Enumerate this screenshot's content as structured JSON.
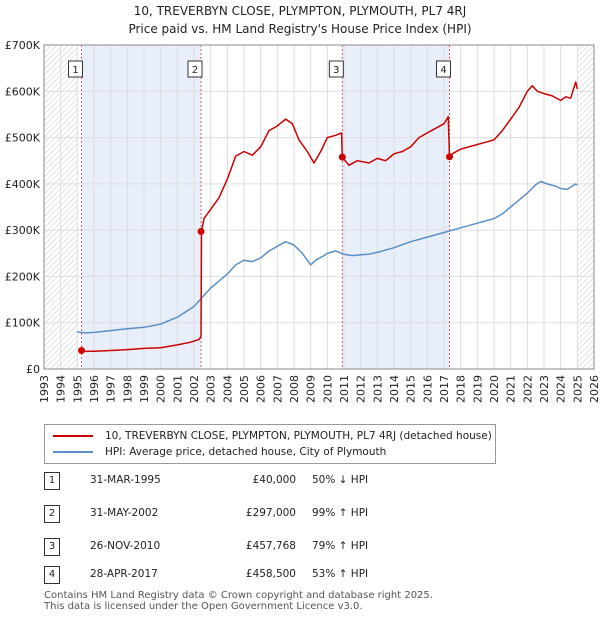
{
  "title": {
    "line1": "10, TREVERBYN CLOSE, PLYMPTON, PLYMOUTH, PL7 4RJ",
    "line2": "Price paid vs. HM Land Registry's House Price Index (HPI)"
  },
  "colors": {
    "price_line": "#cc0000",
    "hpi_line": "#5b8fc7",
    "shade": "#e8eefa",
    "grid": "#dddddd",
    "vline": "#d06060"
  },
  "chart_data": {
    "type": "line",
    "x_range": [
      1993,
      2026
    ],
    "ylim": [
      0,
      700000
    ],
    "y_ticks": [
      {
        "value": 0,
        "label": "£0"
      },
      {
        "value": 100000,
        "label": "£100K"
      },
      {
        "value": 200000,
        "label": "£200K"
      },
      {
        "value": 300000,
        "label": "£300K"
      },
      {
        "value": 400000,
        "label": "£400K"
      },
      {
        "value": 500000,
        "label": "£500K"
      },
      {
        "value": 600000,
        "label": "£600K"
      },
      {
        "value": 700000,
        "label": "£700K"
      }
    ],
    "x_ticks": [
      "1993",
      "1994",
      "1995",
      "1996",
      "1997",
      "1998",
      "1999",
      "2000",
      "2001",
      "2002",
      "2003",
      "2004",
      "2005",
      "2006",
      "2007",
      "2008",
      "2009",
      "2010",
      "2011",
      "2012",
      "2013",
      "2014",
      "2015",
      "2016",
      "2017",
      "2018",
      "2019",
      "2020",
      "2021",
      "2022",
      "2023",
      "2024",
      "2025",
      "2026"
    ],
    "shaded_periods": [
      [
        1995.25,
        2002.42
      ],
      [
        2010.9,
        2017.33
      ]
    ],
    "hatched_regions": [
      [
        1993.0,
        1995.0
      ],
      [
        2025.0,
        2026.0
      ]
    ],
    "sales": [
      {
        "label": "1",
        "x": 1995.25,
        "y": 40000
      },
      {
        "label": "2",
        "x": 2002.42,
        "y": 297000
      },
      {
        "label": "3",
        "x": 2010.9,
        "y": 457768
      },
      {
        "label": "4",
        "x": 2017.33,
        "y": 458500
      }
    ],
    "series": [
      {
        "name": "10, TREVERBYN CLOSE, PLYMPTON, PLYMOUTH, PL7 4RJ (detached house)",
        "x": [
          1995.25,
          1995.5,
          1996.0,
          1997.0,
          1998.0,
          1999.0,
          2000.0,
          2001.0,
          2001.8,
          2002.3,
          2002.42,
          2002.45,
          2002.6,
          2003.0,
          2003.5,
          2004.0,
          2004.5,
          2005.0,
          2005.5,
          2006.0,
          2006.5,
          2007.0,
          2007.5,
          2007.9,
          2008.3,
          2008.8,
          2009.2,
          2009.6,
          2010.0,
          2010.5,
          2010.85,
          2010.9,
          2011.3,
          2011.8,
          2012.5,
          2013.0,
          2013.5,
          2014.0,
          2014.5,
          2015.0,
          2015.5,
          2016.0,
          2016.5,
          2017.0,
          2017.25,
          2017.33,
          2017.5,
          2018.0,
          2018.5,
          2019.0,
          2019.5,
          2020.0,
          2020.5,
          2021.0,
          2021.5,
          2022.0,
          2022.3,
          2022.6,
          2023.0,
          2023.5,
          2024.0,
          2024.3,
          2024.6,
          2024.9,
          2025.0
        ],
        "y": [
          40000,
          38000,
          38500,
          40000,
          42000,
          44500,
          46000,
          52000,
          58000,
          64000,
          70000,
          297000,
          325000,
          345000,
          370000,
          410000,
          460000,
          470000,
          462000,
          480000,
          515000,
          525000,
          540000,
          530000,
          495000,
          470000,
          445000,
          470000,
          500000,
          505000,
          510000,
          457768,
          440000,
          450000,
          445000,
          455000,
          450000,
          465000,
          470000,
          480000,
          500000,
          510000,
          520000,
          530000,
          545000,
          458500,
          465000,
          475000,
          480000,
          485000,
          490000,
          495000,
          515000,
          540000,
          565000,
          600000,
          612000,
          600000,
          595000,
          590000,
          580000,
          588000,
          585000,
          620000,
          605000
        ]
      },
      {
        "name": "HPI: Average price, detached house, City of Plymouth",
        "x": [
          1995.0,
          1995.5,
          1996.0,
          1997.0,
          1998.0,
          1999.0,
          2000.0,
          2001.0,
          2002.0,
          2002.5,
          2003.0,
          2003.5,
          2004.0,
          2004.5,
          2005.0,
          2005.5,
          2006.0,
          2006.5,
          2007.0,
          2007.5,
          2008.0,
          2008.5,
          2009.0,
          2009.3,
          2009.8,
          2010.0,
          2010.5,
          2011.0,
          2011.5,
          2012.0,
          2012.5,
          2013.0,
          2014.0,
          2015.0,
          2016.0,
          2017.0,
          2018.0,
          2019.0,
          2020.0,
          2020.5,
          2021.0,
          2021.5,
          2022.0,
          2022.5,
          2022.8,
          2023.2,
          2023.7,
          2024.0,
          2024.4,
          2024.9,
          2025.0
        ],
        "y": [
          80000,
          78000,
          79000,
          83000,
          87000,
          90000,
          97000,
          112000,
          135000,
          155000,
          175000,
          190000,
          205000,
          225000,
          235000,
          232000,
          240000,
          255000,
          265000,
          275000,
          268000,
          250000,
          225000,
          235000,
          245000,
          250000,
          255000,
          248000,
          245000,
          247000,
          248000,
          252000,
          262000,
          275000,
          285000,
          295000,
          305000,
          315000,
          325000,
          335000,
          350000,
          365000,
          380000,
          398000,
          405000,
          400000,
          395000,
          390000,
          388000,
          400000,
          398000
        ]
      }
    ]
  },
  "legend": {
    "price_label": "10, TREVERBYN CLOSE, PLYMPTON, PLYMOUTH, PL7 4RJ (detached house)",
    "hpi_label": "HPI: Average price, detached house, City of Plymouth"
  },
  "events": [
    {
      "num": "1",
      "date": "31-MAR-1995",
      "price": "£40,000",
      "hpi": "50% ↓ HPI"
    },
    {
      "num": "2",
      "date": "31-MAY-2002",
      "price": "£297,000",
      "hpi": "99% ↑ HPI"
    },
    {
      "num": "3",
      "date": "26-NOV-2010",
      "price": "£457,768",
      "hpi": "79% ↑ HPI"
    },
    {
      "num": "4",
      "date": "28-APR-2017",
      "price": "£458,500",
      "hpi": "53% ↑ HPI"
    }
  ],
  "footer": {
    "line1": "Contains HM Land Registry data © Crown copyright and database right 2025.",
    "line2": "This data is licensed under the Open Government Licence v3.0."
  }
}
